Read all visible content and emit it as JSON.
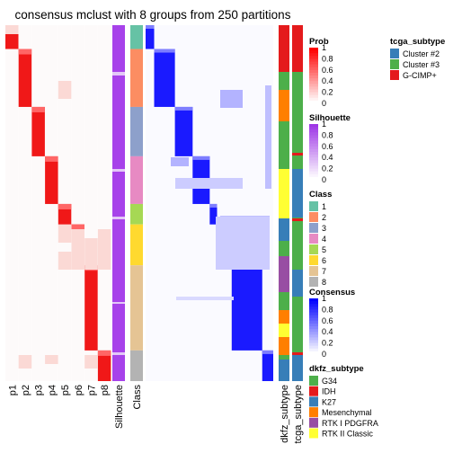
{
  "chart_data": {
    "type": "heatmap",
    "title": "consensus mclust with 8 groups from 250 partitions",
    "prob_columns": [
      "p1",
      "p2",
      "p3",
      "p4",
      "p5",
      "p6",
      "p7",
      "p8"
    ],
    "annotation_columns": [
      "Silhouette",
      "Class"
    ],
    "right_annotation_columns": [
      "dkfz_subtype",
      "tcga_subtype"
    ],
    "class_sizes": [
      28,
      68,
      58,
      56,
      24,
      48,
      100,
      36
    ],
    "class_colors": {
      "1": "#66C2A5",
      "2": "#FC8D62",
      "3": "#8DA0CB",
      "4": "#E78AC3",
      "5": "#A6D854",
      "6": "#FFD92F",
      "7": "#E5C494",
      "8": "#B3B3B3"
    },
    "legends": {
      "prob": {
        "title": "Prob",
        "ticks": [
          "1",
          "0.8",
          "0.6",
          "0.4",
          "0.2",
          "0"
        ],
        "low": "#ffffff",
        "high": "#ff0000"
      },
      "silhouette": {
        "title": "Silhouette",
        "ticks": [
          "1",
          "0.8",
          "0.6",
          "0.4",
          "0.2",
          "0"
        ],
        "low": "#ffffff",
        "high": "#9e37e6"
      },
      "class": {
        "title": "Class",
        "items": [
          "1",
          "2",
          "3",
          "4",
          "5",
          "6",
          "7",
          "8"
        ]
      },
      "consensus": {
        "title": "Consensus",
        "ticks": [
          "1",
          "0.8",
          "0.6",
          "0.4",
          "0.2",
          "0"
        ],
        "low": "#ffffff",
        "high": "#0000ff"
      },
      "dkfz_subtype": {
        "title": "dkfz_subtype",
        "items": [
          {
            "label": "G34",
            "color": "#4DAF4A"
          },
          {
            "label": "IDH",
            "color": "#E41A1C"
          },
          {
            "label": "K27",
            "color": "#377EB8"
          },
          {
            "label": "Mesenchymal",
            "color": "#FF7F00"
          },
          {
            "label": "RTK I PDGFRA",
            "color": "#984EA3"
          },
          {
            "label": "RTK II Classic",
            "color": "#FFFF33"
          }
        ]
      },
      "tcga_subtype": {
        "title": "tcga_subtype",
        "items": [
          {
            "label": "Cluster #2",
            "color": "#377EB8"
          },
          {
            "label": "Cluster #3",
            "color": "#4DAF4A"
          },
          {
            "label": "G-CIMP+",
            "color": "#E41A1C"
          }
        ]
      }
    }
  }
}
